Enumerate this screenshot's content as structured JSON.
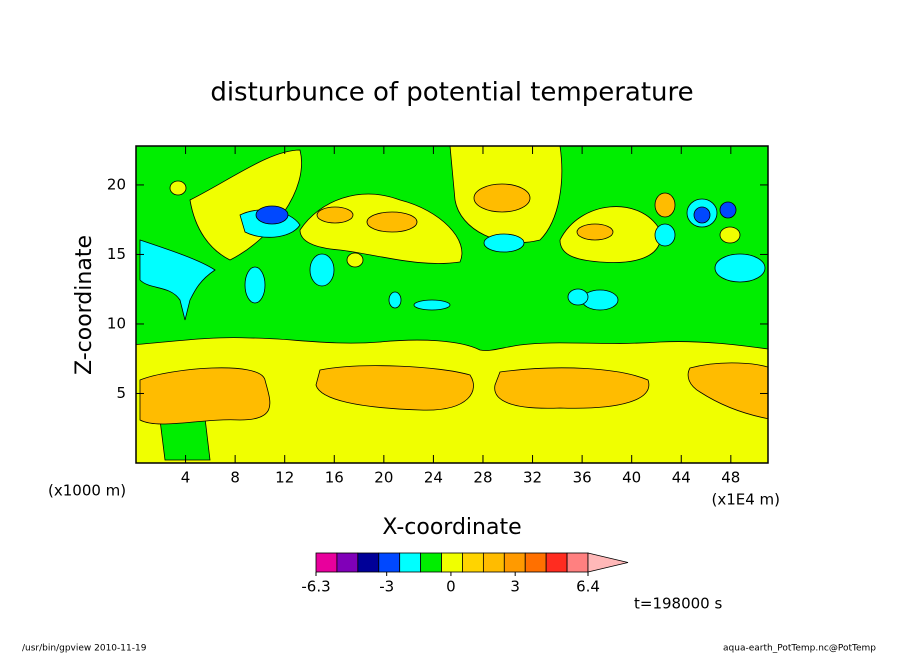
{
  "chart_data": {
    "type": "contour",
    "title": "disturbunce of potential temperature",
    "x_label": "X-coordinate",
    "y_label": "Z-coordinate",
    "x_unit": "(x1E4 m)",
    "y_unit": "(x1000 m)",
    "xlim": [
      0,
      51
    ],
    "ylim": [
      0,
      22.8
    ],
    "xticks": [
      4,
      8,
      12,
      16,
      20,
      24,
      28,
      32,
      36,
      40,
      44,
      48
    ],
    "yticks": [
      5,
      10,
      15,
      20
    ],
    "colorbar": {
      "lim": [
        -6.3,
        6.4
      ],
      "ticks": [
        -6.3,
        -3,
        0,
        3,
        6.4
      ],
      "colors": [
        "#e8009c",
        "#8000b8",
        "#000098",
        "#0048ff",
        "#00ffff",
        "#00ee00",
        "#f0ff00",
        "#ffd400",
        "#ffbc00",
        "#ff9a00",
        "#ff7000",
        "#ff2c20",
        "#ff8080"
      ],
      "over_color": "#ffb8b8"
    },
    "time_label": "t=198000 s",
    "footer_left": "/usr/bin/gpview  2010-11-19",
    "footer_right": "aqua-earth_PotTemp.nc@PotTemp"
  }
}
